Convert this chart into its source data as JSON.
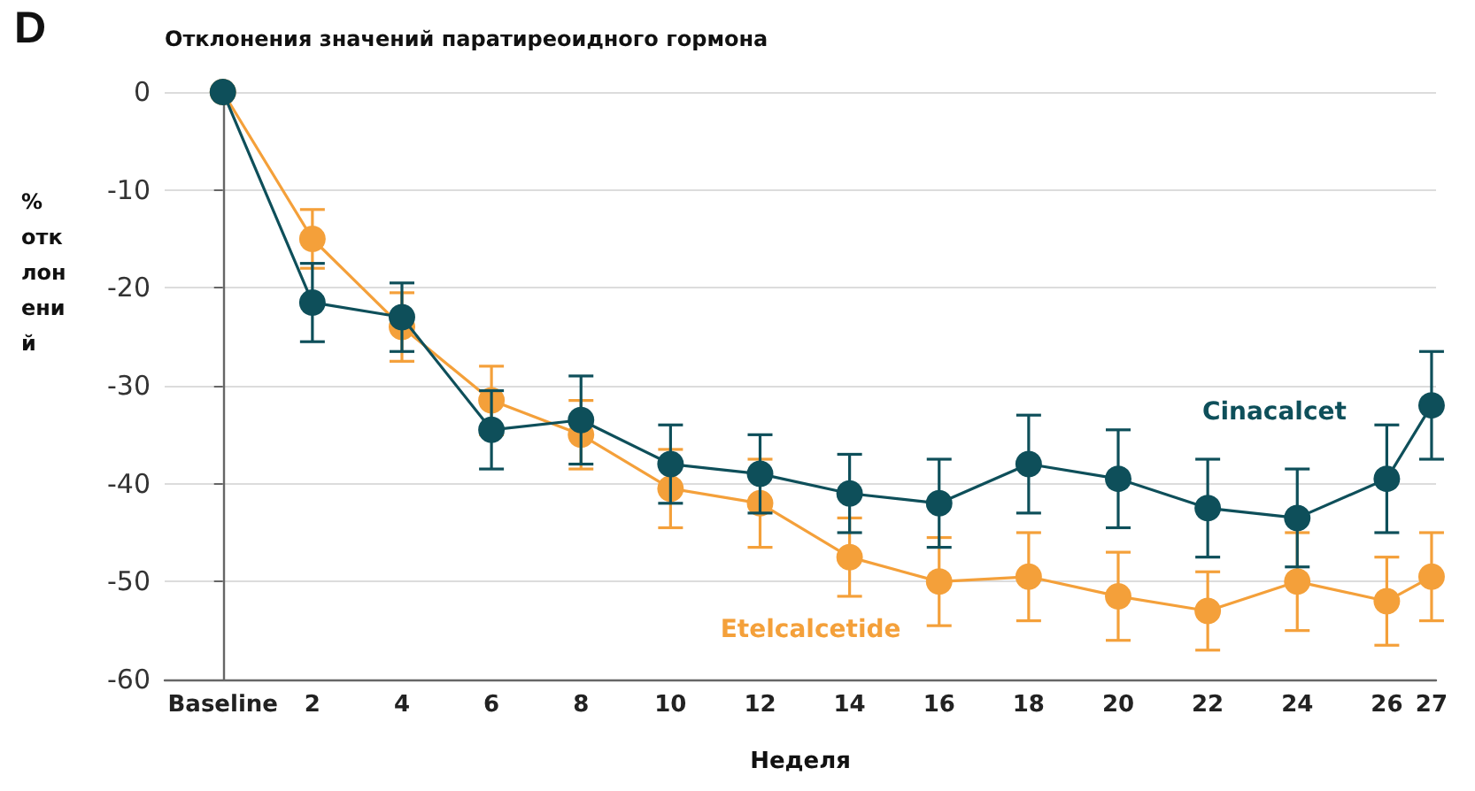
{
  "chart_data": {
    "type": "line",
    "title": "Отклонения значений паратиреоидного гормона",
    "xlabel": "Неделя",
    "ylabel": "% отклонений",
    "annotations": [
      "D"
    ],
    "x": [
      0,
      2,
      4,
      6,
      8,
      10,
      12,
      14,
      16,
      18,
      20,
      22,
      24,
      26,
      27
    ],
    "series": [
      {
        "name": "Cinacalcet",
        "color": "#0e4f5a",
        "values": [
          0,
          -21.5,
          -23,
          -34.5,
          -33.5,
          -38,
          -39,
          -41,
          -42,
          -38,
          -39.5,
          -42.5,
          -43.5,
          -39.5,
          -32
        ],
        "errors": [
          null,
          4,
          3.5,
          4,
          4.5,
          4,
          4,
          4,
          4.5,
          5,
          5,
          5,
          5,
          5.5,
          5.5
        ]
      },
      {
        "name": "Etelcalcetide",
        "color": "#f4a03a",
        "values": [
          0,
          -15,
          -24,
          -31.5,
          -35,
          -40.5,
          -42,
          -47.5,
          -50,
          -49.5,
          -51.5,
          -53,
          -50,
          -52,
          -49.5
        ],
        "errors": [
          null,
          3,
          3.5,
          3.5,
          3.5,
          4,
          4.5,
          4,
          4.5,
          4.5,
          4.5,
          4,
          5,
          4.5,
          4.5
        ]
      }
    ],
    "xlim": [
      -1.3,
      27.1
    ],
    "xticks": [
      {
        "value": 0,
        "label": "Baseline"
      },
      2,
      4,
      6,
      8,
      10,
      12,
      14,
      16,
      18,
      20,
      22,
      24,
      26,
      27
    ],
    "ylim": [
      -60,
      0
    ],
    "yticks": [
      -60,
      -50,
      -40,
      -30,
      -20,
      -10,
      0
    ],
    "grid": "y",
    "marker": "circle",
    "line_style": "solid"
  }
}
